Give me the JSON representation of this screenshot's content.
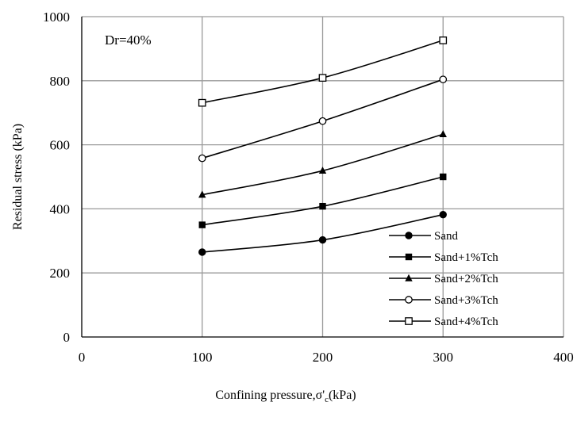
{
  "chart_data": {
    "type": "line",
    "title": "",
    "annotation": "Dr=40%",
    "xlabel": {
      "main": "Confining pressure,σ'",
      "sub": "c",
      "unit": "(kPa)"
    },
    "ylabel": "Residual stress (kPa)",
    "xlim": [
      0,
      400
    ],
    "ylim": [
      0,
      1000
    ],
    "xticks": [
      "0",
      "100",
      "200",
      "300",
      "400"
    ],
    "yticks": [
      "0",
      "200",
      "400",
      "600",
      "800",
      "1000"
    ],
    "x": [
      100,
      200,
      300
    ],
    "grid": true,
    "legend_position": "bottom-right",
    "series": [
      {
        "name": "Sand",
        "marker": "filled-circle",
        "values": [
          265,
          303,
          382
        ]
      },
      {
        "name": "Sand+1%Tch",
        "marker": "filled-square",
        "values": [
          350,
          408,
          500
        ]
      },
      {
        "name": "Sand+2%Tch",
        "marker": "filled-triangle",
        "values": [
          444,
          519,
          633
        ]
      },
      {
        "name": "Sand+3%Tch",
        "marker": "open-circle",
        "values": [
          558,
          674,
          804
        ]
      },
      {
        "name": "Sand+4%Tch",
        "marker": "open-square",
        "values": [
          731,
          809,
          926
        ]
      }
    ],
    "colors": {
      "line": "#000000",
      "grid": "#9a9a9a",
      "background": "#ffffff"
    }
  }
}
